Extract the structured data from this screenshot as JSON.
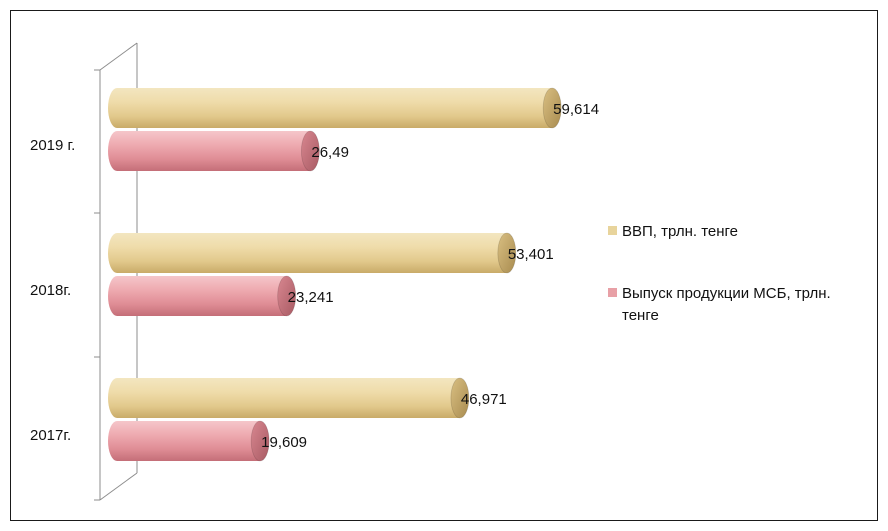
{
  "chart_data": {
    "type": "bar",
    "orientation": "horizontal",
    "style": "3d-cylinder",
    "categories": [
      "2019 г.",
      "2018г.",
      "2017г."
    ],
    "series": [
      {
        "name": "ВВП, трлн. тенге",
        "values": [
          59.614,
          53.401,
          46.971
        ],
        "value_labels": [
          "59,614",
          "53,401",
          "46,971"
        ],
        "color": "#e8d49c"
      },
      {
        "name": "Выпуск продукции МСБ, трлн. тенге",
        "values": [
          26.49,
          23.241,
          19.609
        ],
        "value_labels": [
          "26,49",
          "23,241",
          "19,609"
        ],
        "color": "#e8a0a6"
      }
    ],
    "xlim": [
      0,
      70
    ],
    "legend": {
      "position": "right",
      "entries": [
        "ВВП, трлн. тенге",
        "Выпуск продукции МСБ, трлн. тенге"
      ]
    },
    "grid": false
  }
}
